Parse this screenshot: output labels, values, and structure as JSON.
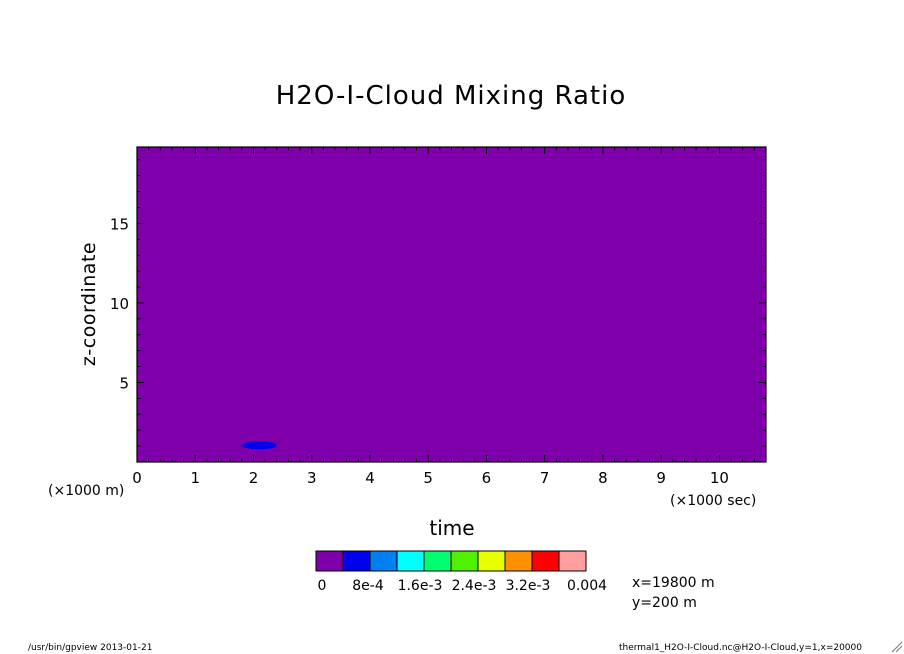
{
  "chart_data": {
    "type": "heatmap",
    "title": "H2O-I-Cloud Mixing Ratio",
    "xlabel": "time",
    "ylabel": "z-coordinate",
    "x_scale_label": "(×1000 sec)",
    "y_scale_label": "(×1000 m)",
    "xlim": [
      0,
      10.8
    ],
    "ylim": [
      0,
      19.8
    ],
    "x_ticks": [
      0,
      1,
      2,
      3,
      4,
      5,
      6,
      7,
      8,
      9,
      10
    ],
    "y_ticks": [
      5,
      10,
      15
    ],
    "background_level_color": "#7f00aa",
    "features": [
      {
        "description_level": "8e-4",
        "color": "#0000ee",
        "x_range": [
          1.8,
          2.4
        ],
        "z_range": [
          0.8,
          1.3
        ]
      }
    ],
    "colorbar": {
      "colors": [
        "#7f00aa",
        "#0000ee",
        "#0080f0",
        "#00ffff",
        "#00ff70",
        "#50f000",
        "#e8ff00",
        "#ff9000",
        "#ff0000",
        "#ffa0a0"
      ],
      "labels": [
        "0",
        "8e-4",
        "1.6e-3",
        "2.4e-3",
        "3.2e-3",
        "0.004"
      ]
    },
    "info": [
      "x=19800 m",
      "y=200 m"
    ]
  },
  "footer": {
    "left": "/usr/bin/gpview  2013-01-21",
    "right": "thermal1_H2O-I-Cloud.nc@H2O-I-Cloud,y=1,x=20000"
  }
}
